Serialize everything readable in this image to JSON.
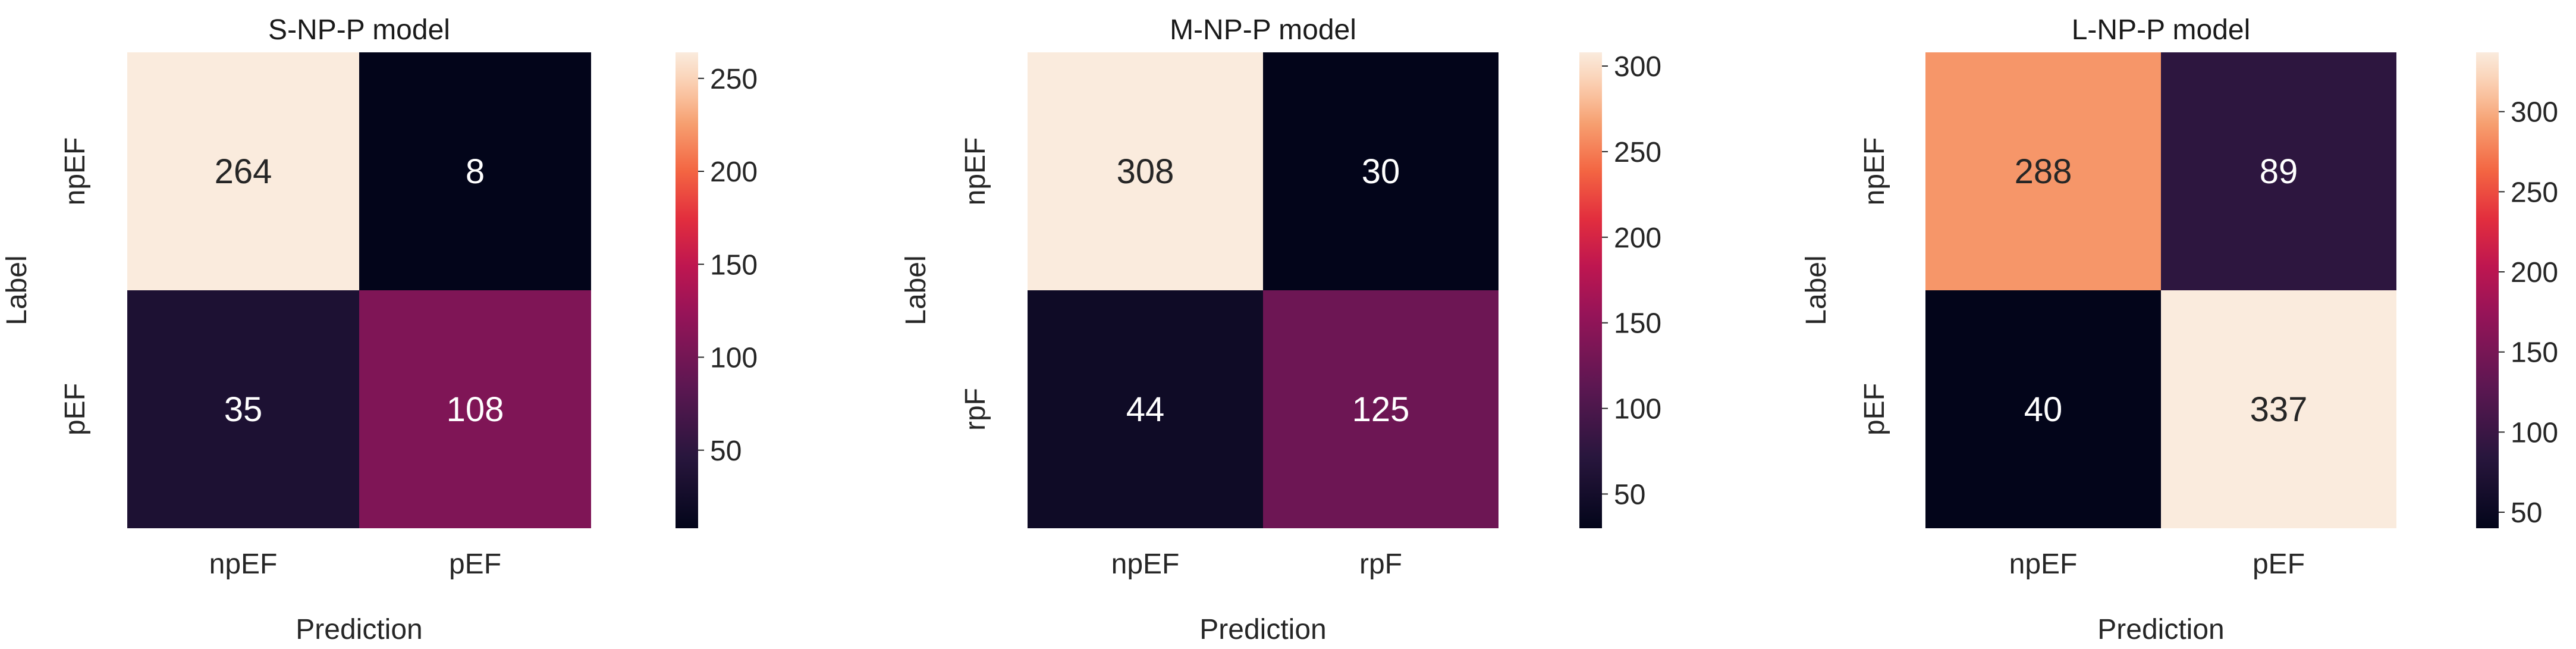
{
  "chart_data": [
    {
      "type": "heatmap",
      "title": "S-NP-P model",
      "xlabel": "Prediction",
      "ylabel": "Label",
      "x_categories": [
        "npEF",
        "pEF"
      ],
      "y_categories": [
        "npEF",
        "pEF"
      ],
      "values": [
        [
          264,
          8
        ],
        [
          35,
          108
        ]
      ],
      "colorbar": {
        "min": 8,
        "max": 264,
        "ticks": [
          "50",
          "100",
          "150",
          "200",
          "250"
        ]
      },
      "colormap": "rocket"
    },
    {
      "type": "heatmap",
      "title": "M-NP-P model",
      "xlabel": "Prediction",
      "ylabel": "Label",
      "x_categories": [
        "npEF",
        "rpF"
      ],
      "y_categories": [
        "npEF",
        "rpF"
      ],
      "values": [
        [
          308,
          30
        ],
        [
          44,
          125
        ]
      ],
      "colorbar": {
        "min": 30,
        "max": 308,
        "ticks": [
          "50",
          "100",
          "150",
          "200",
          "250",
          "300"
        ]
      },
      "colormap": "rocket"
    },
    {
      "type": "heatmap",
      "title": "L-NP-P model",
      "xlabel": "Prediction",
      "ylabel": "Label",
      "x_categories": [
        "npEF",
        "pEF"
      ],
      "y_categories": [
        "npEF",
        "pEF"
      ],
      "values": [
        [
          288,
          89
        ],
        [
          40,
          337
        ]
      ],
      "colorbar": {
        "min": 40,
        "max": 337,
        "ticks": [
          "50",
          "100",
          "150",
          "200",
          "250",
          "300"
        ]
      },
      "colormap": "rocket"
    }
  ]
}
